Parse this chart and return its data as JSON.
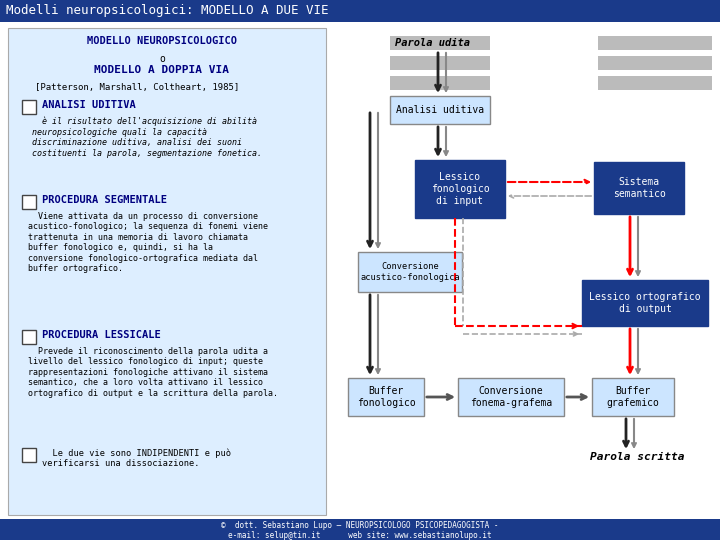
{
  "title": "Modelli neuropsicologici: MODELLO A DUE VIE",
  "title_bg": "#1a3a8a",
  "title_fg": "#ffffff",
  "left_panel_bg": "#ddeeff",
  "footer_bg": "#1a3a8a",
  "footer_fg": "#ffffff",
  "footer_line1": "©  dott. Sebastiano Lupo — NEUROPSICOLOGO PSICOPEDAGOGISTA -",
  "footer_line2": "e-mail: selup@tin.it      web site: www.sebastianolupo.it"
}
